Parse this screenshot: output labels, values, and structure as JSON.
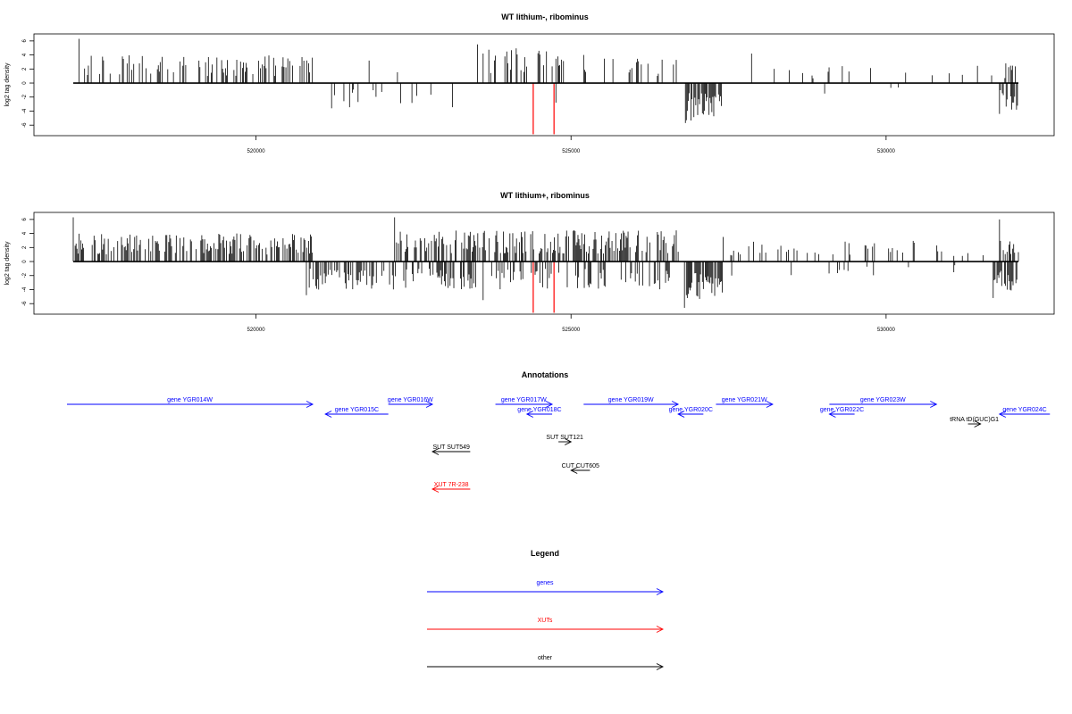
{
  "colors": {
    "genes": "#0000ff",
    "xuts": "#ff0000",
    "other": "#000000",
    "bars": "#000000",
    "highlight": "#ff0000"
  },
  "chart_data": [
    {
      "type": "bar",
      "title": "WT lithium-, ribominus",
      "ylabel": "log2 tag density",
      "xlim": [
        517000,
        532600
      ],
      "ylim": [
        -7.5,
        7
      ],
      "xticks": [
        520000,
        525000,
        530000
      ],
      "xtick_labels": [
        "520000",
        "525000",
        "530000"
      ],
      "yticks": [
        6,
        4,
        2,
        0,
        -2,
        -4,
        -6
      ],
      "ytick_labels": [
        "6",
        "4",
        "2",
        "0",
        "-2",
        "-4",
        "-6"
      ],
      "highlight_lines": [
        524400,
        524730
      ],
      "segments": [
        {
          "start": 517100,
          "end": 520900,
          "strand": "+",
          "density": 0.3,
          "max": 4.0,
          "peak": 6.3
        },
        {
          "start": 520900,
          "end": 523400,
          "strand": "-",
          "density": 0.08,
          "max": 3.5,
          "peak": 3.6
        },
        {
          "start": 521300,
          "end": 523000,
          "strand": "+",
          "density": 0.05,
          "max": 3.0,
          "peak": 3.2
        },
        {
          "start": 523500,
          "end": 524900,
          "strand": "+",
          "density": 0.4,
          "max": 5.0,
          "peak": 5.5
        },
        {
          "start": 524900,
          "end": 526700,
          "strand": "+",
          "density": 0.15,
          "max": 3.5,
          "peak": 4.0
        },
        {
          "start": 524700,
          "end": 525100,
          "strand": "-",
          "density": 0.05,
          "max": 2.5,
          "peak": 2.8
        },
        {
          "start": 526800,
          "end": 527400,
          "strand": "-",
          "density": 0.85,
          "max": 5.5,
          "peak": 5.7
        },
        {
          "start": 527400,
          "end": 531900,
          "strand": "+",
          "density": 0.05,
          "max": 2.5,
          "peak": 4.2
        },
        {
          "start": 528200,
          "end": 531200,
          "strand": "-",
          "density": 0.02,
          "max": 1.5,
          "peak": 1.5
        },
        {
          "start": 531900,
          "end": 532050,
          "strand": "+",
          "density": 0.5,
          "max": 2.5,
          "peak": 2.8
        },
        {
          "start": 531800,
          "end": 532100,
          "strand": "-",
          "density": 0.6,
          "max": 4.0,
          "peak": 4.4
        }
      ]
    },
    {
      "type": "bar",
      "title": "WT lithium+, ribominus",
      "ylabel": "log2 tag density",
      "xlim": [
        517000,
        532600
      ],
      "ylim": [
        -7.5,
        7
      ],
      "xticks": [
        520000,
        525000,
        530000
      ],
      "xtick_labels": [
        "520000",
        "525000",
        "530000"
      ],
      "yticks": [
        6,
        4,
        2,
        0,
        -2,
        -4,
        -6
      ],
      "ytick_labels": [
        "6",
        "4",
        "2",
        "0",
        "-2",
        "-4",
        "-6"
      ],
      "highlight_lines": [
        524400,
        524730
      ],
      "segments": [
        {
          "start": 517100,
          "end": 520900,
          "strand": "+",
          "density": 0.55,
          "max": 4.0,
          "peak": 6.3
        },
        {
          "start": 520800,
          "end": 523500,
          "strand": "-",
          "density": 0.45,
          "max": 4.0,
          "peak": 4.8
        },
        {
          "start": 522200,
          "end": 526700,
          "strand": "+",
          "density": 0.55,
          "max": 4.5,
          "peak": 6.3
        },
        {
          "start": 523500,
          "end": 526600,
          "strand": "-",
          "density": 0.3,
          "max": 4.0,
          "peak": 5.5
        },
        {
          "start": 526800,
          "end": 527400,
          "strand": "-",
          "density": 0.9,
          "max": 6.0,
          "peak": 6.6
        },
        {
          "start": 527400,
          "end": 531900,
          "strand": "+",
          "density": 0.12,
          "max": 3.0,
          "peak": 3.5
        },
        {
          "start": 527400,
          "end": 531200,
          "strand": "-",
          "density": 0.05,
          "max": 2.0,
          "peak": 2.0
        },
        {
          "start": 531800,
          "end": 532100,
          "strand": "+",
          "density": 0.6,
          "max": 3.5,
          "peak": 6.0
        },
        {
          "start": 531700,
          "end": 532100,
          "strand": "-",
          "density": 0.7,
          "max": 4.5,
          "peak": 5.2
        }
      ]
    }
  ],
  "annotations": {
    "title": "Annotations",
    "features": [
      {
        "label": "gene YGR014W",
        "type": "gene",
        "start": 517000,
        "end": 520900,
        "dir": 1,
        "row": 0
      },
      {
        "label": "gene YGR015C",
        "type": "gene",
        "start": 521100,
        "end": 522100,
        "dir": -1,
        "row": 1
      },
      {
        "label": "gene YGR016W",
        "type": "gene",
        "start": 522100,
        "end": 522800,
        "dir": 1,
        "row": 0
      },
      {
        "label": "gene YGR017W",
        "type": "gene",
        "start": 523800,
        "end": 524700,
        "dir": 1,
        "row": 0
      },
      {
        "label": "gene YGR018C",
        "type": "gene",
        "start": 524300,
        "end": 524700,
        "dir": -1,
        "row": 1
      },
      {
        "label": "gene YGR019W",
        "type": "gene",
        "start": 525200,
        "end": 526700,
        "dir": 1,
        "row": 0
      },
      {
        "label": "gene YGR020C",
        "type": "gene",
        "start": 526700,
        "end": 527100,
        "dir": -1,
        "row": 1
      },
      {
        "label": "gene YGR021W",
        "type": "gene",
        "start": 527300,
        "end": 528200,
        "dir": 1,
        "row": 0
      },
      {
        "label": "gene YGR022C",
        "type": "gene",
        "start": 529100,
        "end": 529500,
        "dir": -1,
        "row": 1
      },
      {
        "label": "gene YGR023W",
        "type": "gene",
        "start": 529100,
        "end": 530800,
        "dir": 1,
        "row": 0
      },
      {
        "label": "gene YGR024C",
        "type": "gene",
        "start": 531800,
        "end": 532600,
        "dir": -1,
        "row": 1
      },
      {
        "label": "tRNA tD(GUC)G1",
        "type": "other",
        "start": 531300,
        "end": 531500,
        "dir": 1,
        "row": 2
      },
      {
        "label": "SUT SUT121",
        "type": "other",
        "start": 524800,
        "end": 525000,
        "dir": 1,
        "row": 3
      },
      {
        "label": "SUT SUT549",
        "type": "other",
        "start": 522800,
        "end": 523400,
        "dir": -1,
        "row": 4
      },
      {
        "label": "CUT CUT605",
        "type": "other",
        "start": 525000,
        "end": 525300,
        "dir": -1,
        "row": 6
      },
      {
        "label": "XUT 7R-238",
        "type": "xut",
        "start": 522800,
        "end": 523400,
        "dir": -1,
        "row": 8
      }
    ]
  },
  "legend": {
    "title": "Legend",
    "entries": [
      {
        "label": "genes",
        "type": "gene"
      },
      {
        "label": "XUTs",
        "type": "xut"
      },
      {
        "label": "other",
        "type": "other"
      }
    ]
  }
}
